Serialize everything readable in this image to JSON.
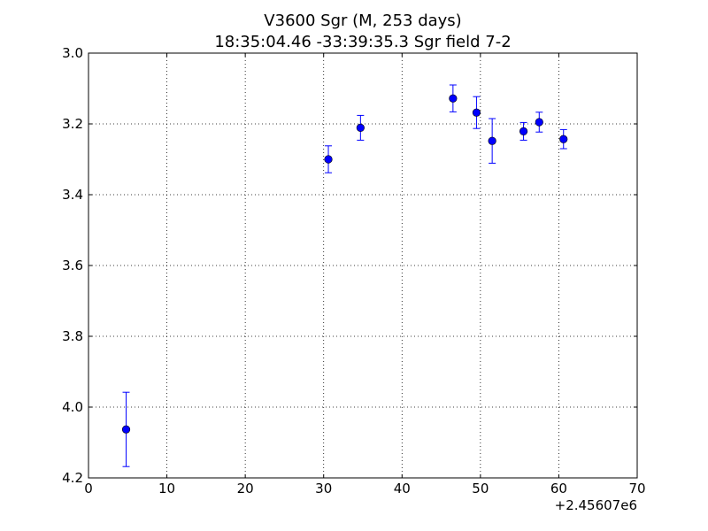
{
  "chart_data": {
    "type": "scatter",
    "title": "V3600 Sgr  (M, 253 days)",
    "subtitle": "18:35:04.46 -33:39:35.3 Sgr field 7-2",
    "xlabel": "",
    "ylabel": "",
    "x_offset_label": "+2.45607e6",
    "xlim": [
      0,
      70
    ],
    "ylim": [
      4.2,
      3.0
    ],
    "y_inverted": true,
    "grid": true,
    "x_ticks": [
      "0",
      "10",
      "20",
      "30",
      "40",
      "50",
      "60",
      "70"
    ],
    "y_ticks": [
      "3.0",
      "3.2",
      "3.4",
      "3.6",
      "3.8",
      "4.0",
      "4.2"
    ],
    "color": "#0000ff",
    "points": [
      {
        "x": 4.8,
        "y": 4.063,
        "err": 0.105
      },
      {
        "x": 30.6,
        "y": 3.3,
        "err": 0.038
      },
      {
        "x": 34.7,
        "y": 3.211,
        "err": 0.035
      },
      {
        "x": 46.5,
        "y": 3.128,
        "err": 0.038
      },
      {
        "x": 49.5,
        "y": 3.168,
        "err": 0.045
      },
      {
        "x": 51.5,
        "y": 3.248,
        "err": 0.063
      },
      {
        "x": 55.5,
        "y": 3.221,
        "err": 0.025
      },
      {
        "x": 57.5,
        "y": 3.195,
        "err": 0.028
      },
      {
        "x": 60.6,
        "y": 3.243,
        "err": 0.027
      }
    ]
  }
}
